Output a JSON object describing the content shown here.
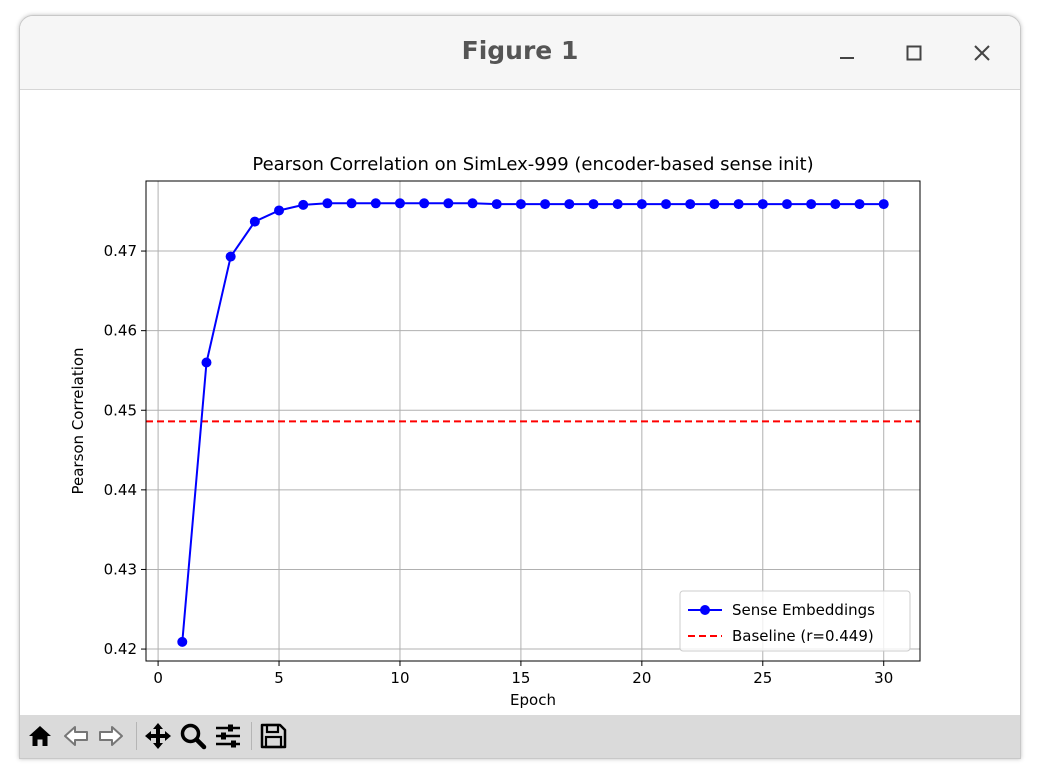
{
  "window": {
    "title": "Figure 1"
  },
  "icons": {
    "minimize": "minimize-icon",
    "maximize": "maximize-icon",
    "close": "close-icon",
    "home": "home-icon",
    "back": "back-arrow-icon",
    "forward": "forward-arrow-icon",
    "pan": "move-icon",
    "zoom": "magnifier-icon",
    "configure": "sliders-icon",
    "save": "floppy-disk-icon"
  },
  "chart_data": {
    "type": "line",
    "title": "Pearson Correlation on SimLex-999 (encoder-based sense init)",
    "xlabel": "Epoch",
    "ylabel": "Pearson Correlation",
    "xlim": [
      -0.5,
      31.5
    ],
    "ylim": [
      0.4185,
      0.4788
    ],
    "xticks": [
      0,
      5,
      10,
      15,
      20,
      25,
      30
    ],
    "yticks": [
      0.42,
      0.43,
      0.44,
      0.45,
      0.46,
      0.47
    ],
    "grid": true,
    "legend_position": "bottom-right",
    "series": [
      {
        "name": "Sense Embeddings",
        "color": "#0000ff",
        "style": "solid-line-with-circle-markers",
        "x": [
          1,
          2,
          3,
          4,
          5,
          6,
          7,
          8,
          9,
          10,
          11,
          12,
          13,
          14,
          15,
          16,
          17,
          18,
          19,
          20,
          21,
          22,
          23,
          24,
          25,
          26,
          27,
          28,
          29,
          30
        ],
        "values": [
          0.4209,
          0.456,
          0.4693,
          0.4737,
          0.4751,
          0.4758,
          0.476,
          0.476,
          0.476,
          0.476,
          0.476,
          0.476,
          0.476,
          0.4759,
          0.4759,
          0.4759,
          0.4759,
          0.4759,
          0.4759,
          0.4759,
          0.4759,
          0.4759,
          0.4759,
          0.4759,
          0.4759,
          0.4759,
          0.4759,
          0.4759,
          0.4759,
          0.4759
        ]
      }
    ],
    "reference_lines": [
      {
        "name": "Baseline (r=0.449)",
        "orientation": "horizontal",
        "value": 0.4486,
        "color": "#ff0000",
        "style": "dashed"
      }
    ]
  }
}
